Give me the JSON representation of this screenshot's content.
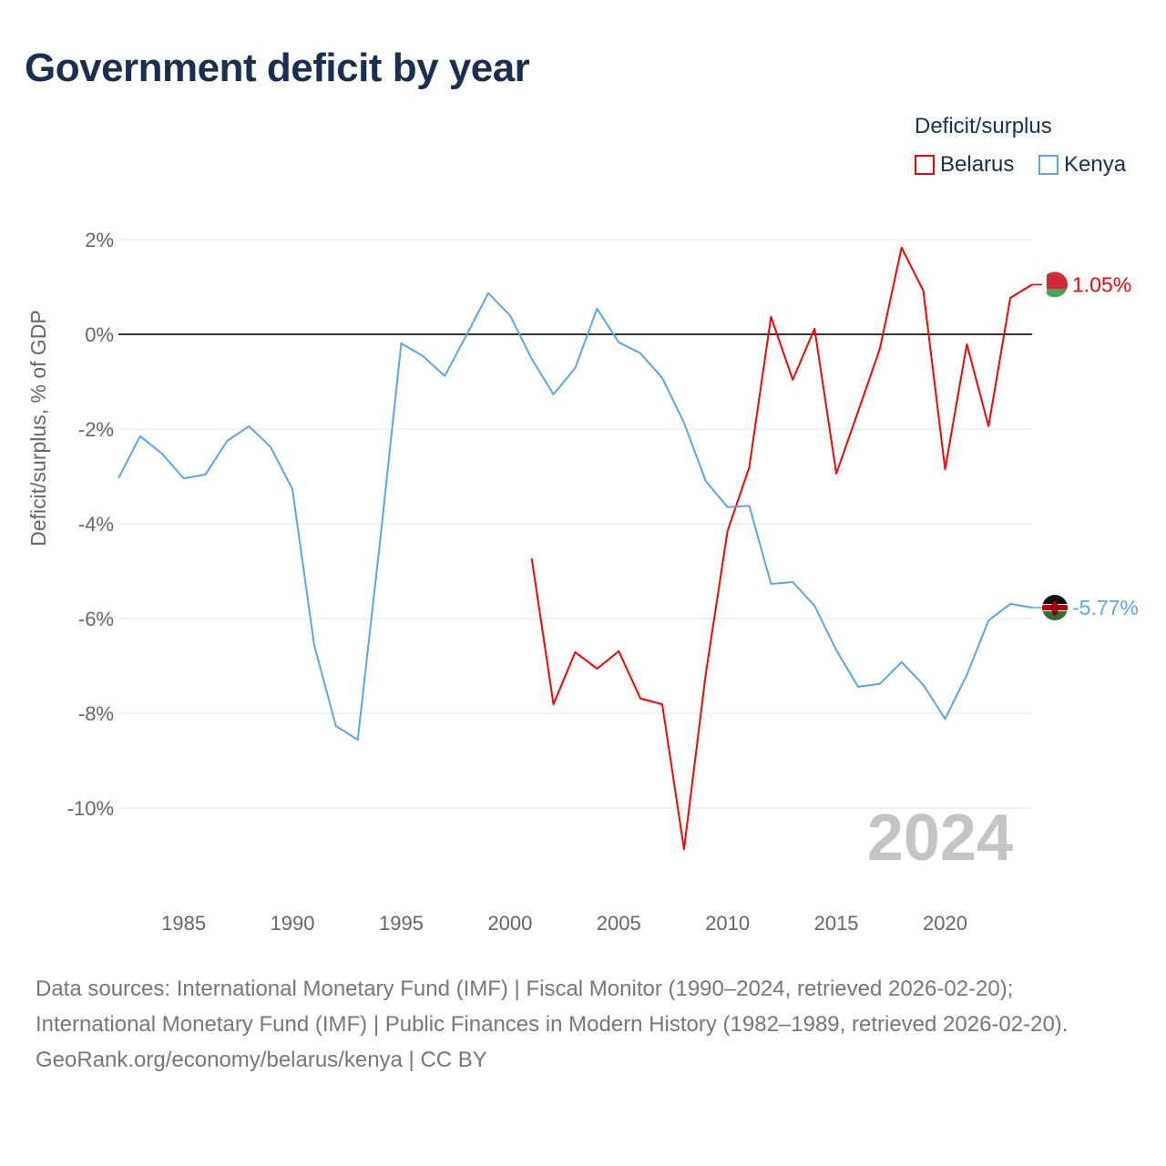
{
  "title": "Government deficit by year",
  "legend": {
    "title": "Deficit/surplus",
    "items": [
      {
        "label": "Belarus",
        "color": "#ff0000"
      },
      {
        "label": "Kenya",
        "color": "#5aa5ec"
      }
    ]
  },
  "year_watermark": "2024",
  "footer": {
    "sources": "Data sources: International Monetary Fund (IMF) | Fiscal Monitor (1990–2024, retrieved 2026-02-20); International Monetary Fund (IMF) | Public Finances in Modern History (1982–1989, retrieved 2026-02-20).",
    "link": "GeoRank.org/economy/belarus/kenya | CC BY"
  },
  "chart_data": {
    "type": "line",
    "title": "Government deficit by year",
    "xlabel": "",
    "ylabel": "Deficit/surplus, % of GDP",
    "xlim": [
      1982,
      2024
    ],
    "ylim": [
      -11.3,
      2.2
    ],
    "x_ticks": [
      1985,
      1990,
      1995,
      2000,
      2005,
      2010,
      2015,
      2020
    ],
    "y_ticks": [
      2,
      0,
      -2,
      -4,
      -6,
      -8,
      -10
    ],
    "y_tick_labels": [
      "2%",
      "0%",
      "-2%",
      "-4%",
      "-6%",
      "-8%",
      "-10%"
    ],
    "grid": true,
    "legend_position": "top-right",
    "series": [
      {
        "name": "Belarus",
        "color": "#ff0000",
        "end_label": "1.05%",
        "x": [
          2001,
          2002,
          2003,
          2004,
          2005,
          2006,
          2007,
          2008,
          2009,
          2010,
          2011,
          2012,
          2013,
          2014,
          2015,
          2016,
          2017,
          2018,
          2019,
          2020,
          2021,
          2022,
          2023,
          2024
        ],
        "values": [
          -4.73,
          -7.81,
          -6.71,
          -7.06,
          -6.69,
          -7.69,
          -7.81,
          -10.87,
          -7.17,
          -4.15,
          -2.81,
          0.37,
          -0.96,
          0.12,
          -2.94,
          -1.63,
          -0.31,
          1.83,
          0.92,
          -2.85,
          -0.21,
          -1.94,
          0.77,
          1.05
        ]
      },
      {
        "name": "Kenya",
        "color": "#5aa5ec",
        "end_label": "-5.77%",
        "x": [
          1982,
          1983,
          1984,
          1985,
          1986,
          1987,
          1988,
          1989,
          1990,
          1991,
          1992,
          1993,
          1994,
          1995,
          1996,
          1997,
          1998,
          1999,
          2000,
          2001,
          2002,
          2003,
          2004,
          2005,
          2006,
          2007,
          2008,
          2009,
          2010,
          2011,
          2012,
          2013,
          2014,
          2015,
          2016,
          2017,
          2018,
          2019,
          2020,
          2021,
          2022,
          2023,
          2024
        ],
        "values": [
          -3.04,
          -2.15,
          -2.52,
          -3.04,
          -2.96,
          -2.25,
          -1.94,
          -2.38,
          -3.27,
          -6.56,
          -8.27,
          -8.56,
          -4.48,
          -0.19,
          -0.46,
          -0.88,
          -0.02,
          0.87,
          0.4,
          -0.52,
          -1.27,
          -0.71,
          0.54,
          -0.17,
          -0.4,
          -0.92,
          -1.87,
          -3.1,
          -3.65,
          -3.62,
          -5.27,
          -5.23,
          -5.73,
          -6.67,
          -7.44,
          -7.38,
          -6.92,
          -7.4,
          -8.12,
          -7.19,
          -6.04,
          -5.69,
          -5.77
        ]
      }
    ]
  }
}
